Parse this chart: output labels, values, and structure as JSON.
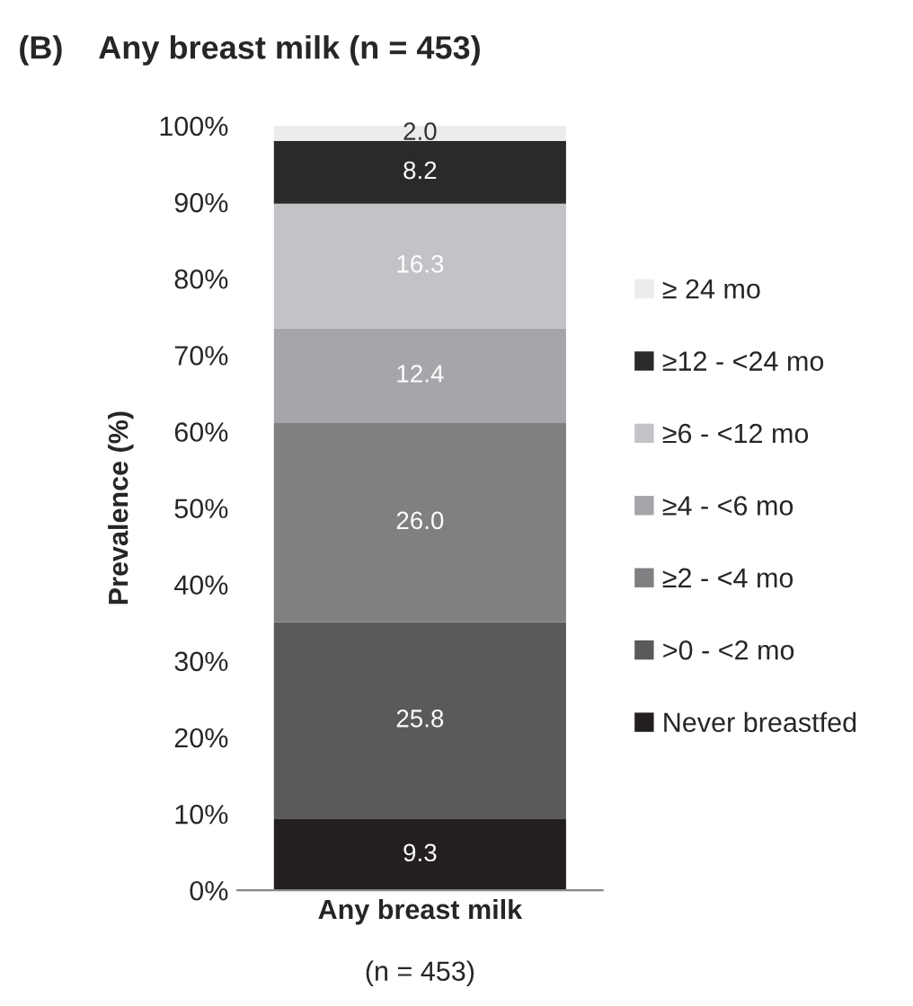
{
  "chart_data": {
    "type": "bar",
    "stacked": true,
    "title": "(B)    Any breast milk (n = 453)",
    "ylabel": "Prevalence (%)",
    "categories": [
      "Any breast milk"
    ],
    "series": [
      {
        "name": "Never breastfed",
        "color": "#231f20",
        "values": [
          9.3
        ],
        "value_labels": [
          "9.3"
        ]
      },
      {
        "name": ">0 - <2 mo",
        "color": "#5a5a5c",
        "values": [
          25.8
        ],
        "value_labels": [
          "25.8"
        ]
      },
      {
        "name": "≥2 - <4 mo",
        "color": "#808083",
        "values": [
          26.0
        ],
        "value_labels": [
          "26.0"
        ]
      },
      {
        "name": "≥4 - <6 mo",
        "color": "#a5a6a9",
        "values": [
          12.4
        ],
        "value_labels": [
          "12.4"
        ]
      },
      {
        "name": "≥6 - <12 mo",
        "color": "#c2c3c6",
        "values": [
          16.3
        ],
        "value_labels": [
          "16.3"
        ]
      },
      {
        "name": "≥12 - <24 mo",
        "color": "#2a2a2a",
        "values": [
          8.2
        ],
        "value_labels": [
          "8.2"
        ]
      },
      {
        "name": "≥ 24 mo",
        "color": "#ececec",
        "values": [
          2.0
        ],
        "value_labels": [
          "2.0"
        ]
      }
    ],
    "ylim": [
      0,
      100
    ],
    "yticks": [
      {
        "value": 0,
        "label": "0%"
      },
      {
        "value": 10,
        "label": "10%"
      },
      {
        "value": 20,
        "label": "20%"
      },
      {
        "value": 30,
        "label": "30%"
      },
      {
        "value": 40,
        "label": "40%"
      },
      {
        "value": 50,
        "label": "50%"
      },
      {
        "value": 60,
        "label": "60%"
      },
      {
        "value": 70,
        "label": "70%"
      },
      {
        "value": 80,
        "label": "80%"
      },
      {
        "value": 90,
        "label": "90%"
      },
      {
        "value": 100,
        "label": "100%"
      }
    ],
    "legend": "right",
    "grid": false,
    "annotations": [
      "(n = 453)"
    ]
  }
}
